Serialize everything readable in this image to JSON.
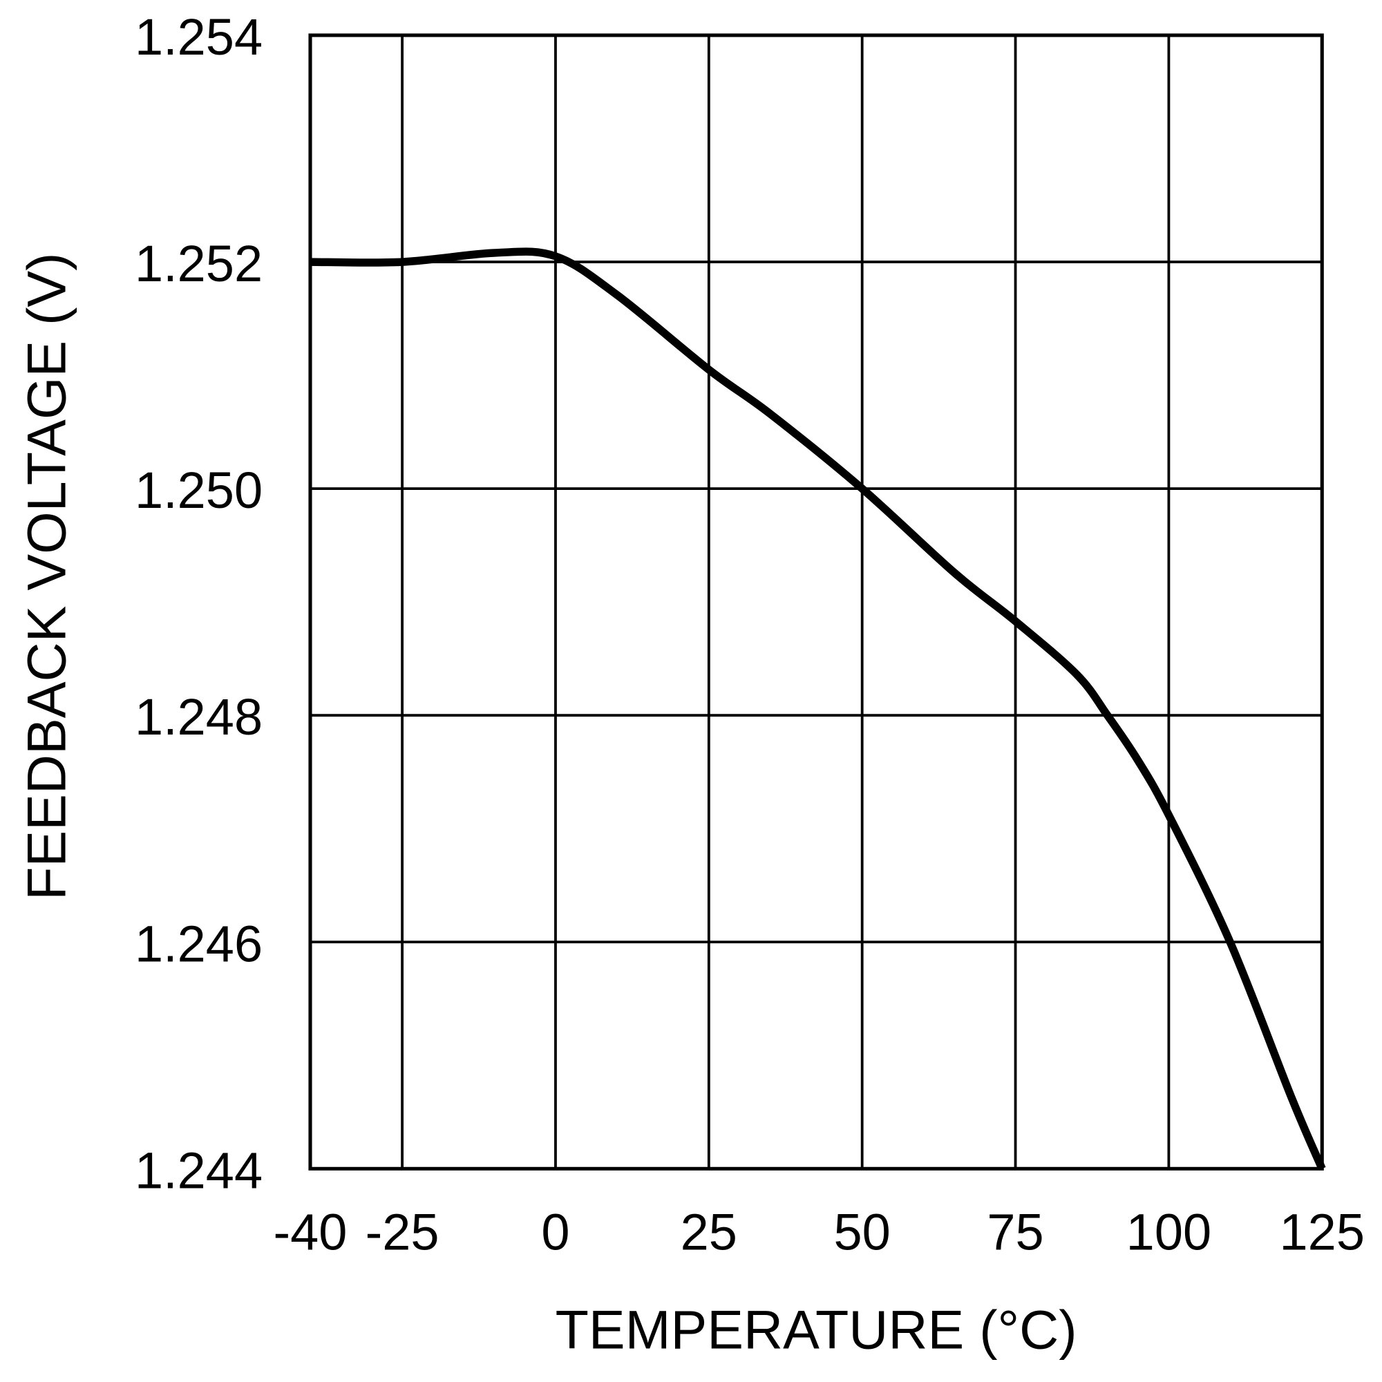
{
  "chart_data": {
    "type": "line",
    "title": "",
    "xlabel": "TEMPERATURE (°C)",
    "ylabel": "FEEDBACK VOLTAGE (V)",
    "xlim": [
      -40,
      125
    ],
    "ylim": [
      1.244,
      1.254
    ],
    "xticks": [
      -40,
      -25,
      0,
      25,
      50,
      75,
      100,
      125
    ],
    "xtick_labels": [
      "-40",
      "-25",
      "0",
      "25",
      "50",
      "75",
      "100",
      "125"
    ],
    "yticks": [
      1.244,
      1.246,
      1.248,
      1.25,
      1.252,
      1.254
    ],
    "ytick_labels": [
      "1.244",
      "1.246",
      "1.248",
      "1.250",
      "1.252",
      "1.254"
    ],
    "grid": true,
    "line_color": "#000000",
    "series": [
      {
        "x": [
          -40,
          -25,
          -10,
          0,
          10,
          25,
          35,
          50,
          65,
          75,
          85,
          90,
          95,
          100,
          110,
          120,
          125
        ],
        "y": [
          1.252,
          1.252,
          1.25208,
          1.25205,
          1.25171,
          1.25105,
          1.25066,
          1.25,
          1.24926,
          1.24883,
          1.24836,
          1.248,
          1.2476,
          1.24712,
          1.246,
          1.24463,
          1.244
        ]
      }
    ]
  }
}
